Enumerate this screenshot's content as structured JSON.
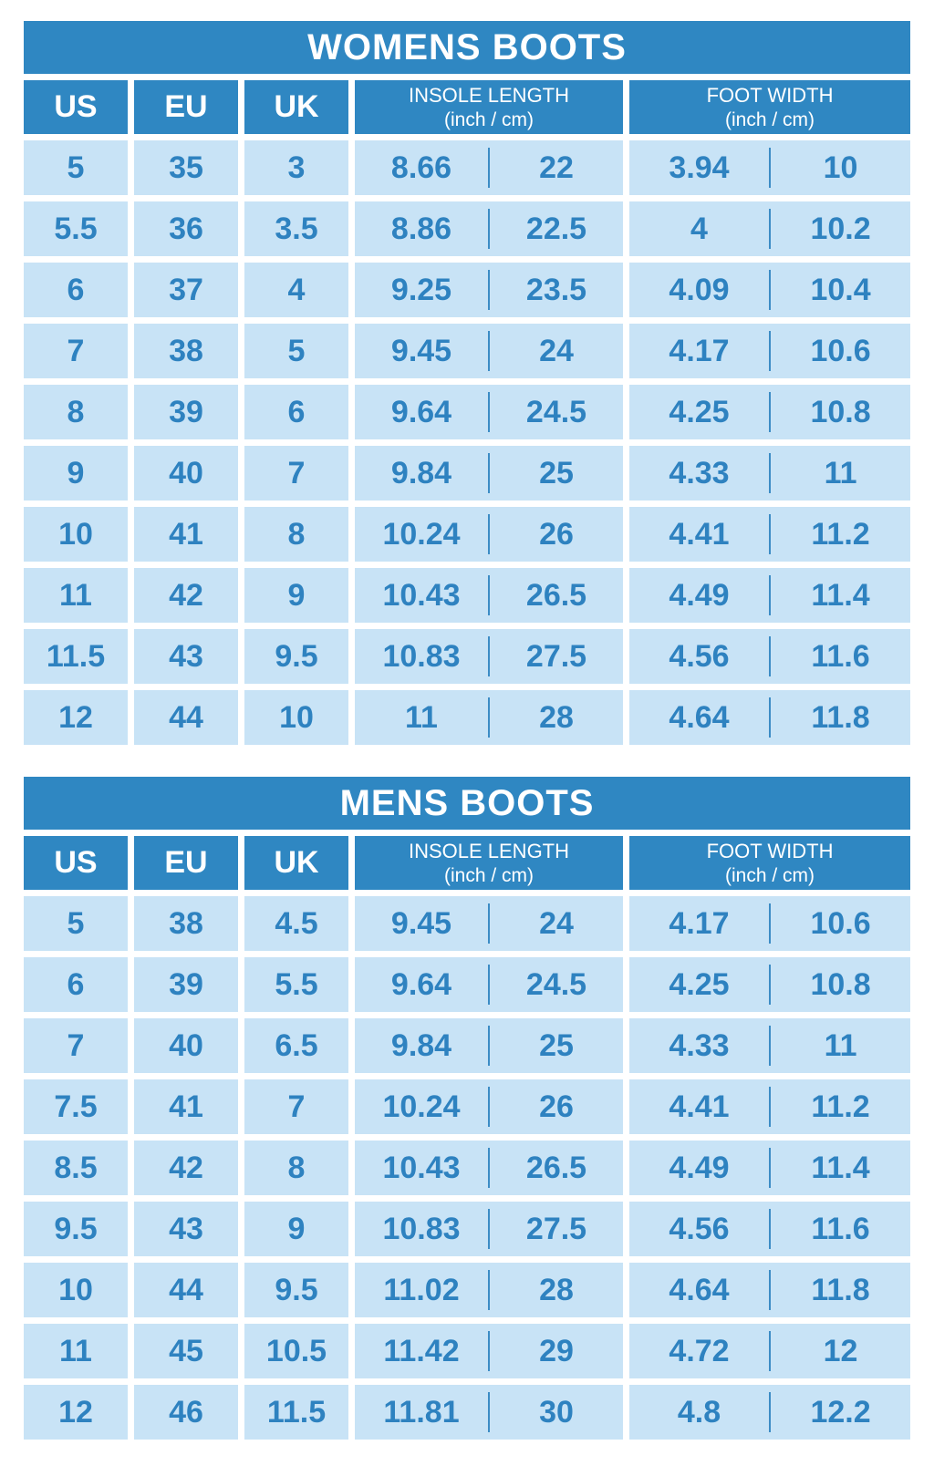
{
  "colors": {
    "header_bg": "#2f87c2",
    "header_text": "#ffffff",
    "cell_bg": "#c8e3f6",
    "cell_text": "#2e82c0",
    "divider": "#3c8cc5",
    "page_bg": "#ffffff"
  },
  "chart_data": [
    {
      "type": "table",
      "title": "WOMENS BOOTS",
      "headers": {
        "us": "US",
        "eu": "EU",
        "uk": "UK",
        "insole_label": "INSOLE LENGTH",
        "insole_unit": "(inch / cm)",
        "width_label": "FOOT WIDTH",
        "width_unit": "(inch / cm)"
      },
      "columns": [
        "US",
        "EU",
        "UK",
        "INSOLE LENGTH (inch)",
        "INSOLE LENGTH (cm)",
        "FOOT WIDTH (inch)",
        "FOOT WIDTH (cm)"
      ],
      "rows": [
        [
          "5",
          "35",
          "3",
          "8.66",
          "22",
          "3.94",
          "10"
        ],
        [
          "5.5",
          "36",
          "3.5",
          "8.86",
          "22.5",
          "4",
          "10.2"
        ],
        [
          "6",
          "37",
          "4",
          "9.25",
          "23.5",
          "4.09",
          "10.4"
        ],
        [
          "7",
          "38",
          "5",
          "9.45",
          "24",
          "4.17",
          "10.6"
        ],
        [
          "8",
          "39",
          "6",
          "9.64",
          "24.5",
          "4.25",
          "10.8"
        ],
        [
          "9",
          "40",
          "7",
          "9.84",
          "25",
          "4.33",
          "11"
        ],
        [
          "10",
          "41",
          "8",
          "10.24",
          "26",
          "4.41",
          "11.2"
        ],
        [
          "11",
          "42",
          "9",
          "10.43",
          "26.5",
          "4.49",
          "11.4"
        ],
        [
          "11.5",
          "43",
          "9.5",
          "10.83",
          "27.5",
          "4.56",
          "11.6"
        ],
        [
          "12",
          "44",
          "10",
          "11",
          "28",
          "4.64",
          "11.8"
        ]
      ]
    },
    {
      "type": "table",
      "title": "MENS BOOTS",
      "headers": {
        "us": "US",
        "eu": "EU",
        "uk": "UK",
        "insole_label": "INSOLE LENGTH",
        "insole_unit": "(inch / cm)",
        "width_label": "FOOT WIDTH",
        "width_unit": "(inch / cm)"
      },
      "columns": [
        "US",
        "EU",
        "UK",
        "INSOLE LENGTH (inch)",
        "INSOLE LENGTH (cm)",
        "FOOT WIDTH (inch)",
        "FOOT WIDTH (cm)"
      ],
      "rows": [
        [
          "5",
          "38",
          "4.5",
          "9.45",
          "24",
          "4.17",
          "10.6"
        ],
        [
          "6",
          "39",
          "5.5",
          "9.64",
          "24.5",
          "4.25",
          "10.8"
        ],
        [
          "7",
          "40",
          "6.5",
          "9.84",
          "25",
          "4.33",
          "11"
        ],
        [
          "7.5",
          "41",
          "7",
          "10.24",
          "26",
          "4.41",
          "11.2"
        ],
        [
          "8.5",
          "42",
          "8",
          "10.43",
          "26.5",
          "4.49",
          "11.4"
        ],
        [
          "9.5",
          "43",
          "9",
          "10.83",
          "27.5",
          "4.56",
          "11.6"
        ],
        [
          "10",
          "44",
          "9.5",
          "11.02",
          "28",
          "4.64",
          "11.8"
        ],
        [
          "11",
          "45",
          "10.5",
          "11.42",
          "29",
          "4.72",
          "12"
        ],
        [
          "12",
          "46",
          "11.5",
          "11.81",
          "30",
          "4.8",
          "12.2"
        ]
      ]
    }
  ]
}
